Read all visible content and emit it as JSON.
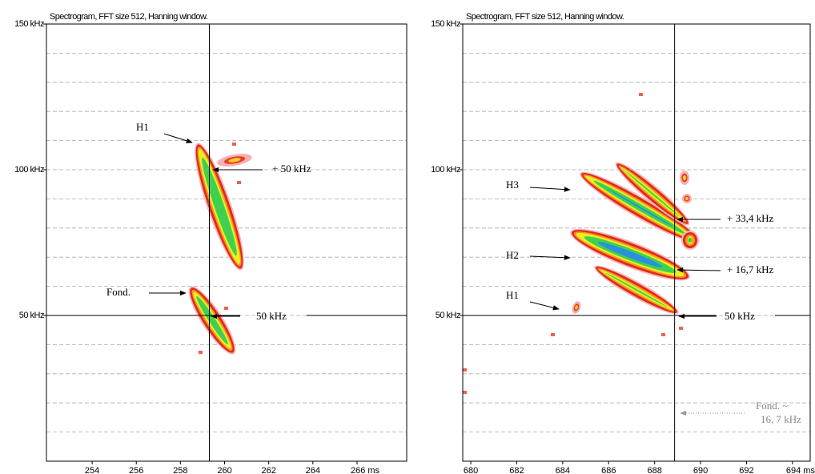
{
  "chart_data": [
    {
      "type": "spectrogram",
      "title": "Spectrogram, FFT size 512, Hanning window.",
      "xlim": [
        251.93,
        268.25
      ],
      "ylim": [
        0,
        150
      ],
      "xticks": [
        254,
        256,
        258,
        260,
        262,
        264,
        {
          "value": 266,
          "label": "266 ms"
        }
      ],
      "yticks": [
        {
          "value": 50,
          "label": "50 kHz"
        },
        {
          "value": 100,
          "label": "100 kHz"
        },
        {
          "value": 150,
          "label": "150 kHz"
        }
      ],
      "ygrid": [
        10,
        20,
        30,
        40,
        60,
        70,
        80,
        90,
        110,
        120,
        130,
        140
      ],
      "cursor_x": 259.31,
      "cursor_y": 50,
      "annotations": [
        "H1",
        "+ 50 kHz",
        "Fond.",
        "50 kHz"
      ]
    },
    {
      "type": "spectrogram",
      "title": "Spectrogram, FFT size 512, Hanning window.",
      "xlim": [
        679.65,
        694.77
      ],
      "ylim": [
        0,
        150
      ],
      "xticks": [
        680,
        682,
        684,
        686,
        688,
        690,
        692,
        {
          "value": 694,
          "label": "694 ms"
        }
      ],
      "yticks": [
        {
          "value": 50,
          "label": "50 kHz"
        },
        {
          "value": 100,
          "label": "100 kHz"
        },
        {
          "value": 150,
          "label": "150 kHz"
        }
      ],
      "ygrid": [
        10,
        20,
        30,
        40,
        60,
        70,
        80,
        90,
        110,
        120,
        130,
        140
      ],
      "cursor_x": 688.87,
      "cursor_y": 50,
      "annotations": [
        "H3",
        "+ 33,4 kHz",
        "H2",
        "+ 16,7 kHz",
        "H1",
        "50 kHz",
        "Fond. ~",
        "16, 7 kHz"
      ]
    }
  ]
}
